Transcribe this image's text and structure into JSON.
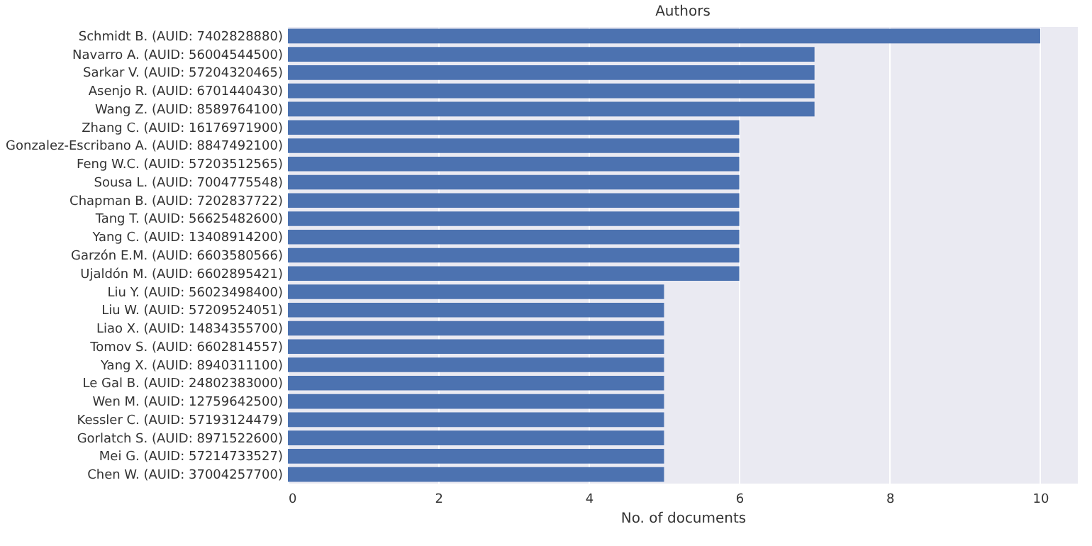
{
  "chart_data": {
    "type": "bar",
    "orientation": "horizontal",
    "title": "Authors",
    "xlabel": "No. of documents",
    "categories": [
      "Schmidt B. (AUID: 7402828880)",
      "Navarro A. (AUID: 56004544500)",
      "Sarkar V. (AUID: 57204320465)",
      "Asenjo R. (AUID: 6701440430)",
      "Wang Z. (AUID: 8589764100)",
      "Zhang C. (AUID: 16176971900)",
      "Gonzalez-Escribano A. (AUID: 8847492100)",
      "Feng W.C. (AUID: 57203512565)",
      "Sousa L. (AUID: 7004775548)",
      "Chapman B. (AUID: 7202837722)",
      "Tang T. (AUID: 56625482600)",
      "Yang C. (AUID: 13408914200)",
      "Garzón E.M. (AUID: 6603580566)",
      "Ujaldón M. (AUID: 6602895421)",
      "Liu Y. (AUID: 56023498400)",
      "Liu W. (AUID: 57209524051)",
      "Liao X. (AUID: 14834355700)",
      "Tomov S. (AUID: 6602814557)",
      "Yang X. (AUID: 8940311100)",
      "Le Gal B. (AUID: 24802383000)",
      "Wen M. (AUID: 12759642500)",
      "Kessler C. (AUID: 57193124479)",
      "Gorlatch S. (AUID: 8971522600)",
      "Mei G. (AUID: 57214733527)",
      "Chen W. (AUID: 37004257700)"
    ],
    "values": [
      10,
      7,
      7,
      7,
      7,
      6,
      6,
      6,
      6,
      6,
      6,
      6,
      6,
      6,
      5,
      5,
      5,
      5,
      5,
      5,
      5,
      5,
      5,
      5,
      5
    ],
    "color": "#4c72b0",
    "xlim": [
      0,
      10.5
    ],
    "xticks": [
      0,
      2,
      4,
      6,
      8,
      10
    ],
    "grid": "x"
  }
}
